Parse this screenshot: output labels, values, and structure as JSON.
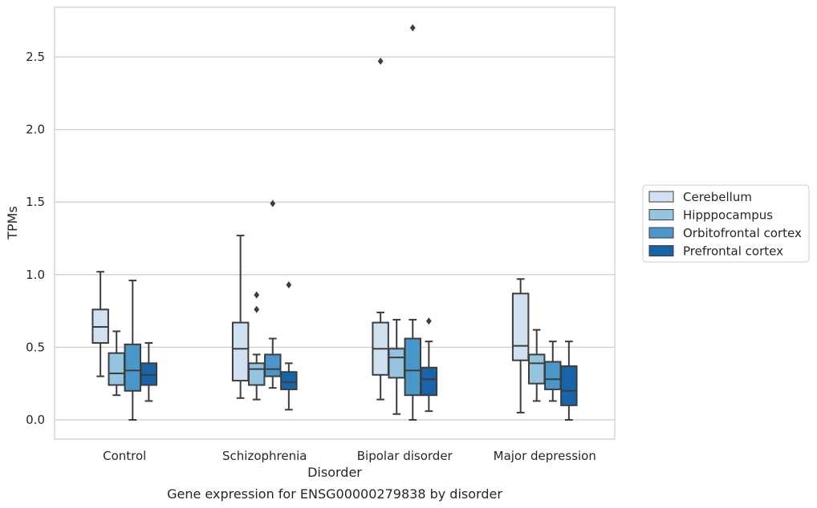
{
  "chart_data": {
    "type": "box",
    "title": "Gene expression for ENSG00000279838 by disorder",
    "xlabel": "Disorder",
    "ylabel": "TPMs",
    "ylim": [
      -0.13,
      2.85
    ],
    "yticks": [
      0.0,
      0.5,
      1.0,
      1.5,
      2.0,
      2.5
    ],
    "ytick_labels": [
      "0.0",
      "0.5",
      "1.0",
      "1.5",
      "2.0",
      "2.5"
    ],
    "categories": [
      "Control",
      "Schizophrenia",
      "Bipolar disorder",
      "Major depression"
    ],
    "grid": "horizontal",
    "legend_position": "outside-right",
    "series": [
      {
        "name": "Cerebellum",
        "color": "#d0e1f2",
        "boxes": [
          {
            "whislo": 0.3,
            "q1": 0.53,
            "med": 0.64,
            "q3": 0.76,
            "whishi": 1.02,
            "fliers": []
          },
          {
            "whislo": 0.15,
            "q1": 0.27,
            "med": 0.49,
            "q3": 0.67,
            "whishi": 1.27,
            "fliers": []
          },
          {
            "whislo": 0.14,
            "q1": 0.31,
            "med": 0.49,
            "q3": 0.67,
            "whishi": 0.74,
            "fliers": [
              2.47
            ]
          },
          {
            "whislo": 0.05,
            "q1": 0.41,
            "med": 0.51,
            "q3": 0.87,
            "whishi": 0.97,
            "fliers": []
          }
        ]
      },
      {
        "name": "Hipppocampus",
        "color": "#94c4df",
        "boxes": [
          {
            "whislo": 0.17,
            "q1": 0.24,
            "med": 0.32,
            "q3": 0.46,
            "whishi": 0.61,
            "fliers": []
          },
          {
            "whislo": 0.14,
            "q1": 0.24,
            "med": 0.35,
            "q3": 0.39,
            "whishi": 0.45,
            "fliers": [
              0.76,
              0.86
            ]
          },
          {
            "whislo": 0.04,
            "q1": 0.29,
            "med": 0.43,
            "q3": 0.49,
            "whishi": 0.69,
            "fliers": []
          },
          {
            "whislo": 0.13,
            "q1": 0.25,
            "med": 0.39,
            "q3": 0.45,
            "whishi": 0.62,
            "fliers": []
          }
        ]
      },
      {
        "name": "Orbitofrontal cortex",
        "color": "#4a98c9",
        "boxes": [
          {
            "whislo": 0.0,
            "q1": 0.2,
            "med": 0.34,
            "q3": 0.52,
            "whishi": 0.96,
            "fliers": []
          },
          {
            "whislo": 0.22,
            "q1": 0.3,
            "med": 0.35,
            "q3": 0.45,
            "whishi": 0.56,
            "fliers": [
              1.49
            ]
          },
          {
            "whislo": 0.0,
            "q1": 0.17,
            "med": 0.34,
            "q3": 0.56,
            "whishi": 0.69,
            "fliers": [
              2.7
            ]
          },
          {
            "whislo": 0.13,
            "q1": 0.21,
            "med": 0.28,
            "q3": 0.4,
            "whishi": 0.54,
            "fliers": []
          }
        ]
      },
      {
        "name": "Prefrontal cortex",
        "color": "#1764ab",
        "boxes": [
          {
            "whislo": 0.13,
            "q1": 0.24,
            "med": 0.31,
            "q3": 0.39,
            "whishi": 0.53,
            "fliers": []
          },
          {
            "whislo": 0.07,
            "q1": 0.21,
            "med": 0.26,
            "q3": 0.33,
            "whishi": 0.39,
            "fliers": [
              0.93
            ]
          },
          {
            "whislo": 0.06,
            "q1": 0.17,
            "med": 0.28,
            "q3": 0.36,
            "whishi": 0.54,
            "fliers": [
              0.68
            ]
          },
          {
            "whislo": 0.0,
            "q1": 0.1,
            "med": 0.2,
            "q3": 0.37,
            "whishi": 0.54,
            "fliers": []
          }
        ]
      }
    ]
  }
}
